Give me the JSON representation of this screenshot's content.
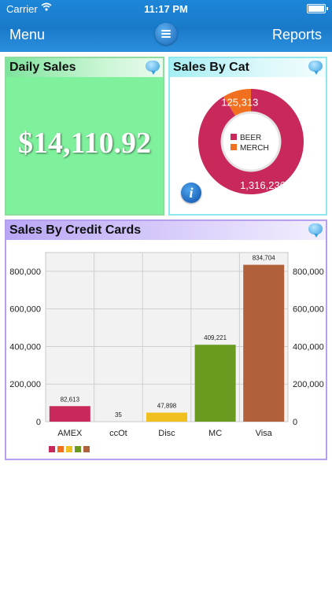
{
  "status_bar": {
    "carrier": "Carrier",
    "time": "11:17 PM"
  },
  "nav": {
    "left_label": "Menu",
    "right_label": "Reports",
    "center_icon": "hamburger-menu-icon"
  },
  "daily_sales": {
    "title": "Daily Sales",
    "amount": "$14,110.92",
    "bg_color": "#7ff09c"
  },
  "sales_by_cat": {
    "title": "Sales By Cat",
    "info_glyph": "i",
    "chart_data": {
      "type": "pie",
      "variant": "donut",
      "categories": [
        "BEER",
        "MERCH"
      ],
      "values": [
        1316236,
        125313
      ],
      "value_labels": [
        "1,316,236",
        "125,313"
      ],
      "colors": [
        "#c8285a",
        "#f07020"
      ],
      "legend": "center"
    }
  },
  "sales_by_cc": {
    "title": "Sales By Credit Cards",
    "chart_data": {
      "type": "bar",
      "categories": [
        "AMEX",
        "ccOt",
        "Disc",
        "MC",
        "Visa"
      ],
      "values": [
        82613,
        35,
        47898,
        409221,
        834704
      ],
      "value_labels": [
        "82,613",
        "35",
        "47,898",
        "409,221",
        "834,704"
      ],
      "colors": [
        "#c8285a",
        "#f07020",
        "#f0c020",
        "#6a9a20",
        "#b0603a"
      ],
      "ylim": [
        0,
        900000
      ],
      "yticks": [
        0,
        200000,
        400000,
        600000,
        800000
      ],
      "ytick_labels": [
        "0",
        "200,000",
        "400,000",
        "600,000",
        "800,000"
      ],
      "dual_y_axis": true,
      "grid": true,
      "legend": "bottom-left"
    }
  }
}
